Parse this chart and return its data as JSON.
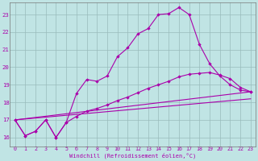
{
  "xlabel": "Windchill (Refroidissement éolien,°C)",
  "bg_color": "#c0e4e4",
  "line_color": "#aa00aa",
  "grid_color": "#99bbbb",
  "xlim": [
    -0.5,
    23.5
  ],
  "ylim": [
    15.5,
    23.7
  ],
  "xticks": [
    0,
    1,
    2,
    3,
    4,
    5,
    6,
    7,
    8,
    9,
    10,
    11,
    12,
    13,
    14,
    15,
    16,
    17,
    18,
    19,
    20,
    21,
    22,
    23
  ],
  "yticks": [
    16,
    17,
    18,
    19,
    20,
    21,
    22,
    23
  ],
  "line1_x": [
    0,
    1,
    2,
    3,
    4,
    5,
    6,
    7,
    8,
    9,
    10,
    11,
    12,
    13,
    14,
    15,
    16,
    17,
    18,
    19,
    20,
    21,
    22,
    23
  ],
  "line1_y": [
    17.0,
    16.1,
    16.35,
    17.0,
    16.0,
    16.85,
    18.5,
    19.3,
    19.2,
    19.5,
    20.6,
    21.1,
    21.9,
    22.2,
    23.0,
    23.05,
    23.4,
    23.0,
    21.3,
    20.2,
    19.5,
    19.0,
    18.7,
    18.6
  ],
  "line2_x": [
    0,
    1,
    2,
    3,
    4,
    5,
    6,
    7,
    8,
    9,
    10,
    11,
    12,
    13,
    14,
    15,
    16,
    17,
    18,
    19,
    20,
    21,
    22,
    23
  ],
  "line2_y": [
    17.0,
    16.1,
    16.35,
    17.0,
    16.0,
    16.85,
    17.2,
    17.5,
    17.65,
    17.85,
    18.1,
    18.3,
    18.55,
    18.8,
    19.0,
    19.2,
    19.45,
    19.6,
    19.65,
    19.7,
    19.55,
    19.35,
    18.85,
    18.6
  ],
  "line3_x": [
    0,
    23
  ],
  "line3_y": [
    17.0,
    18.6
  ],
  "line4_x": [
    0,
    23
  ],
  "line4_y": [
    17.0,
    18.2
  ]
}
